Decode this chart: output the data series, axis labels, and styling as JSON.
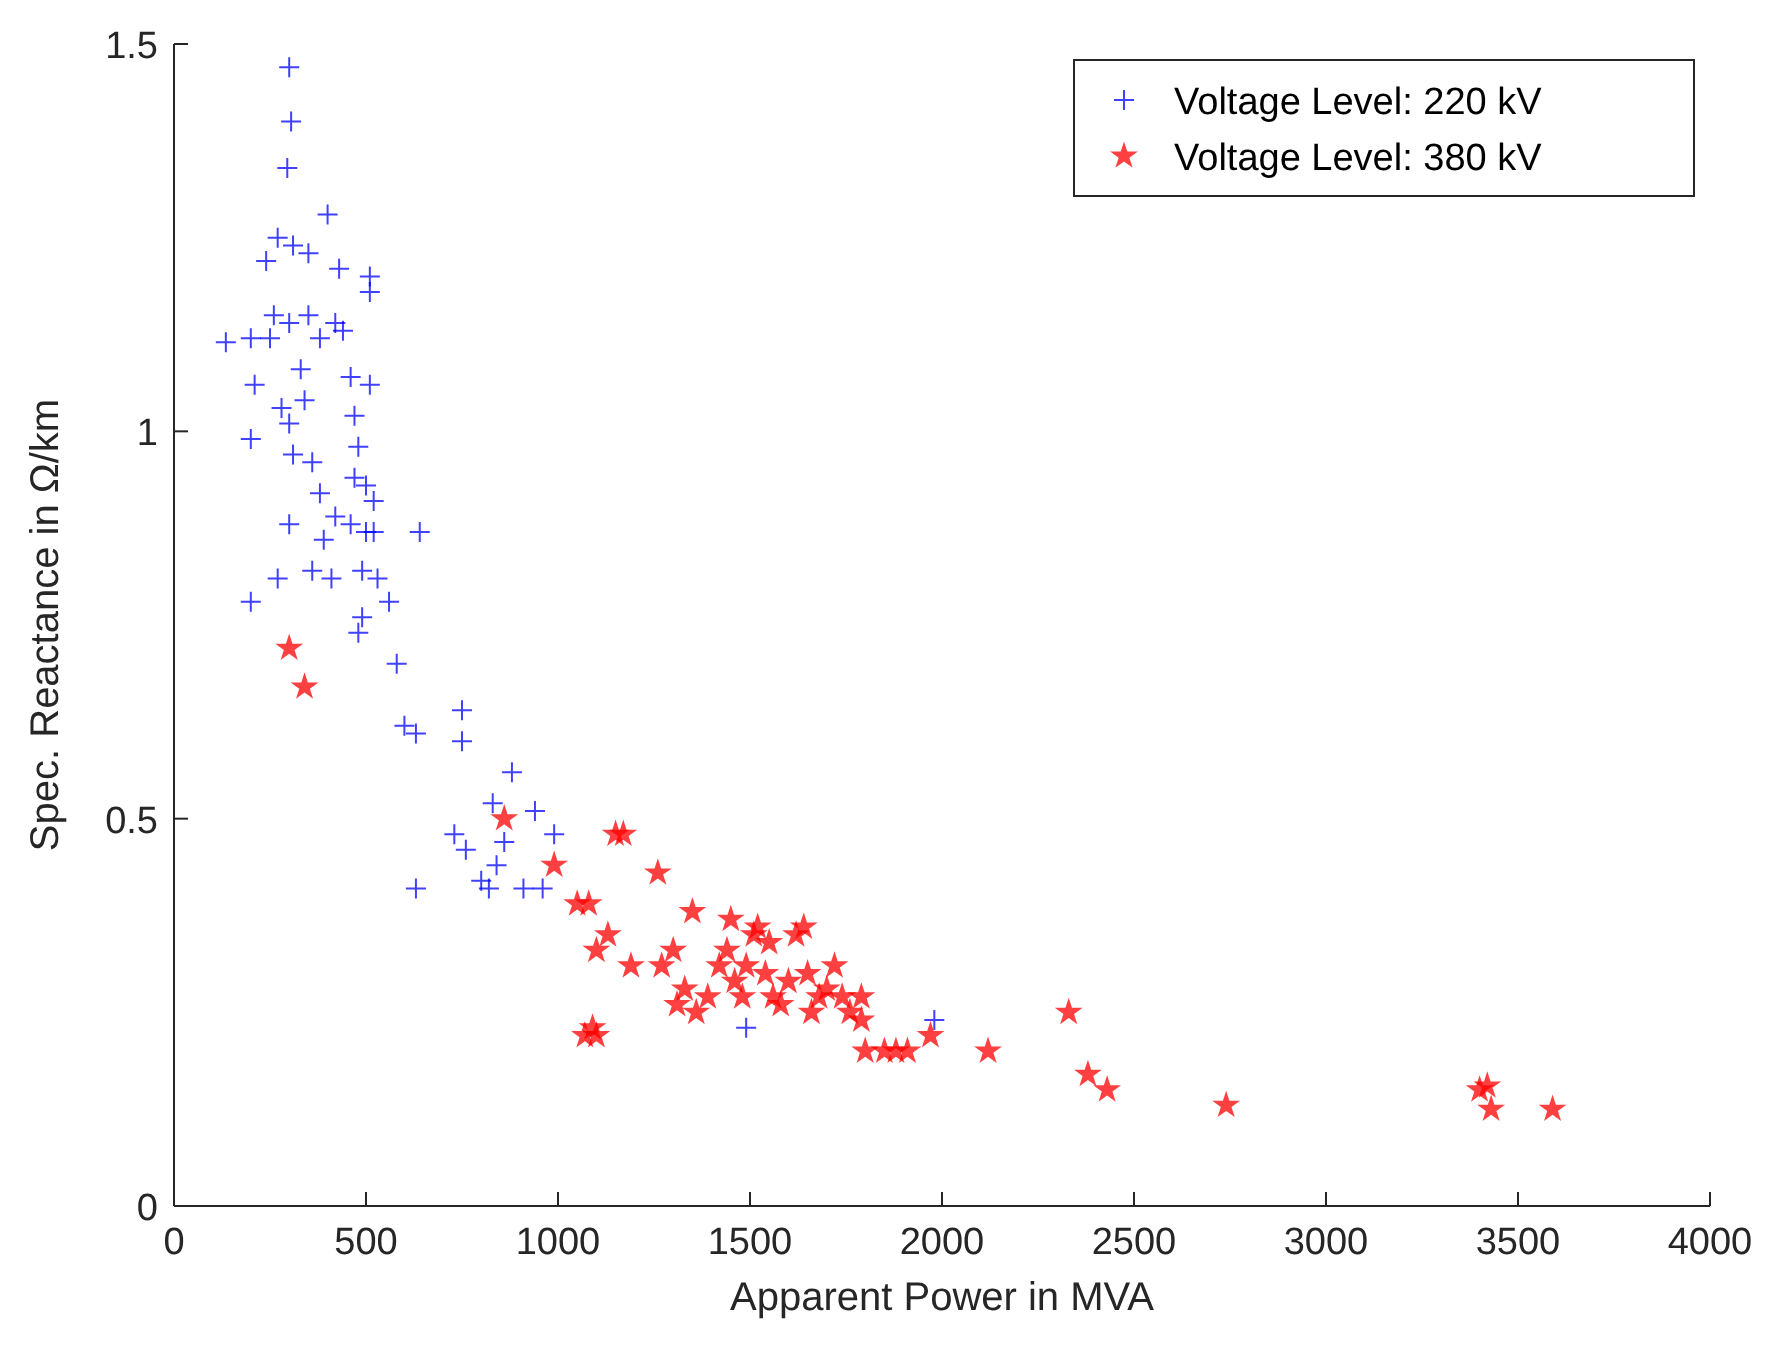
{
  "chart_data": {
    "type": "scatter",
    "xlabel": "Apparent Power in MVA",
    "ylabel": "Spec. Reactance in Ω/km",
    "xlim": [
      0,
      4000
    ],
    "xticks": [
      0,
      500,
      1000,
      1500,
      2000,
      2500,
      3000,
      3500,
      4000
    ],
    "ylim": [
      0,
      1.5
    ],
    "yticks": [
      0,
      0.5,
      1,
      1.5
    ],
    "grid": false,
    "legend": "top right",
    "series": [
      {
        "name": "Voltage Level: 220 kV",
        "color": "#0000ff",
        "marker": "cross",
        "x": [
          300,
          305,
          295,
          400,
          270,
          240,
          310,
          350,
          430,
          510,
          510,
          260,
          300,
          350,
          420,
          200,
          135,
          250,
          380,
          440,
          210,
          330,
          460,
          510,
          280,
          300,
          340,
          470,
          200,
          310,
          360,
          480,
          380,
          470,
          500,
          520,
          420,
          300,
          460,
          500,
          520,
          640,
          390,
          360,
          410,
          490,
          530,
          560,
          200,
          270,
          490,
          480,
          580,
          600,
          630,
          750,
          750,
          880,
          830,
          940,
          730,
          760,
          860,
          990,
          840,
          800,
          820,
          630,
          910,
          960,
          1490,
          1980
        ],
        "values": [
          1.47,
          1.4,
          1.34,
          1.28,
          1.25,
          1.22,
          1.24,
          1.23,
          1.21,
          1.2,
          1.18,
          1.15,
          1.14,
          1.15,
          1.14,
          1.12,
          1.115,
          1.12,
          1.12,
          1.13,
          1.06,
          1.08,
          1.07,
          1.06,
          1.03,
          1.01,
          1.04,
          1.02,
          0.99,
          0.97,
          0.96,
          0.98,
          0.92,
          0.94,
          0.93,
          0.91,
          0.89,
          0.88,
          0.88,
          0.87,
          0.87,
          0.87,
          0.86,
          0.82,
          0.81,
          0.82,
          0.81,
          0.78,
          0.78,
          0.81,
          0.76,
          0.74,
          0.7,
          0.62,
          0.61,
          0.64,
          0.6,
          0.56,
          0.52,
          0.51,
          0.48,
          0.46,
          0.47,
          0.48,
          0.44,
          0.42,
          0.41,
          0.41,
          0.41,
          0.41,
          0.23,
          0.24
        ]
      },
      {
        "name": "Voltage Level: 380 kV",
        "color": "#ff0000",
        "marker": "star",
        "x": [
          300,
          340,
          860,
          990,
          1050,
          1080,
          1070,
          1090,
          1100,
          1150,
          1170,
          1100,
          1130,
          1190,
          1260,
          1270,
          1300,
          1310,
          1330,
          1350,
          1360,
          1390,
          1420,
          1440,
          1450,
          1460,
          1480,
          1490,
          1510,
          1520,
          1540,
          1550,
          1560,
          1580,
          1600,
          1620,
          1640,
          1650,
          1660,
          1680,
          1700,
          1720,
          1740,
          1760,
          1790,
          1790,
          1800,
          1850,
          1880,
          1910,
          1970,
          2120,
          2330,
          2380,
          2430,
          2740,
          3400,
          3420,
          3430,
          3590
        ],
        "values": [
          0.72,
          0.67,
          0.5,
          0.44,
          0.39,
          0.39,
          0.22,
          0.23,
          0.22,
          0.48,
          0.48,
          0.33,
          0.35,
          0.31,
          0.43,
          0.31,
          0.33,
          0.26,
          0.28,
          0.38,
          0.25,
          0.27,
          0.31,
          0.33,
          0.37,
          0.29,
          0.27,
          0.31,
          0.35,
          0.36,
          0.3,
          0.34,
          0.27,
          0.26,
          0.29,
          0.35,
          0.36,
          0.3,
          0.25,
          0.27,
          0.28,
          0.31,
          0.27,
          0.25,
          0.27,
          0.24,
          0.2,
          0.2,
          0.2,
          0.2,
          0.22,
          0.2,
          0.25,
          0.17,
          0.15,
          0.13,
          0.15,
          0.155,
          0.125,
          0.125
        ]
      }
    ]
  }
}
